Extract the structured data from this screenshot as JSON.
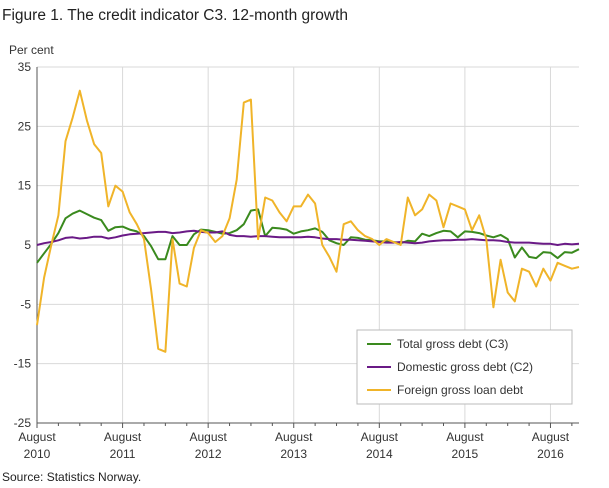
{
  "title": "Figure 1. The credit indicator C3. 12-month growth",
  "source": "Source: Statistics Norway.",
  "chart_data": {
    "type": "line",
    "title": "Figure 1. The credit indicator C3. 12-month growth",
    "ylabel": "Per cent",
    "xlabel": "",
    "ylim": [
      -25,
      35
    ],
    "yticks": [
      35,
      25,
      15,
      5,
      -5,
      -15,
      -25
    ],
    "xticks": [
      {
        "month": 0,
        "line1": "August",
        "line2": "2010"
      },
      {
        "month": 12,
        "line1": "August",
        "line2": "2011"
      },
      {
        "month": 24,
        "line1": "August",
        "line2": "2012"
      },
      {
        "month": 36,
        "line1": "August",
        "line2": "2013"
      },
      {
        "month": 48,
        "line1": "August",
        "line2": "2014"
      },
      {
        "month": 60,
        "line1": "August",
        "line2": "2015"
      },
      {
        "month": 72,
        "line1": "August",
        "line2": "2016"
      }
    ],
    "grid": true,
    "legend_position": "bottom-right",
    "series": [
      {
        "name": "Total gross debt (C3)",
        "color": "#3a8a1e",
        "values": [
          2.0,
          3.6,
          5.2,
          7.0,
          9.5,
          10.3,
          10.8,
          10.2,
          9.6,
          9.2,
          7.4,
          8.0,
          8.1,
          7.6,
          7.3,
          6.5,
          4.8,
          2.6,
          2.6,
          6.5,
          5.0,
          5.0,
          6.8,
          7.6,
          7.5,
          7.2,
          6.9,
          7.0,
          7.5,
          8.5,
          10.8,
          11.0,
          6.5,
          7.9,
          7.8,
          7.6,
          6.9,
          7.3,
          7.5,
          7.8,
          7.2,
          5.8,
          5.3,
          5.0,
          6.3,
          6.2,
          5.9,
          5.8,
          5.6,
          5.6,
          5.5,
          5.3,
          5.7,
          5.6,
          6.9,
          6.5,
          7.0,
          7.4,
          7.3,
          6.3,
          7.3,
          7.2,
          7.0,
          6.6,
          6.3,
          6.7,
          6.0,
          2.9,
          4.6,
          3.0,
          2.8,
          3.8,
          3.7,
          2.8,
          3.8,
          3.7,
          4.3
        ]
      },
      {
        "name": "Domestic gross debt (C2)",
        "color": "#6a1a86",
        "values": [
          5.0,
          5.3,
          5.5,
          5.8,
          6.2,
          6.3,
          6.1,
          6.2,
          6.4,
          6.4,
          6.1,
          6.3,
          6.6,
          6.8,
          6.9,
          7.0,
          7.1,
          7.2,
          7.2,
          7.0,
          7.1,
          7.3,
          7.4,
          7.2,
          7.1,
          7.1,
          7.3,
          6.7,
          6.5,
          6.5,
          6.4,
          6.5,
          6.5,
          6.4,
          6.3,
          6.3,
          6.3,
          6.3,
          6.4,
          6.3,
          6.1,
          6.0,
          6.0,
          5.9,
          5.9,
          5.8,
          5.7,
          5.6,
          5.5,
          5.4,
          5.4,
          5.5,
          5.4,
          5.3,
          5.4,
          5.6,
          5.7,
          5.8,
          5.8,
          5.9,
          5.9,
          6.0,
          5.9,
          5.8,
          5.8,
          5.7,
          5.5,
          5.4,
          5.4,
          5.4,
          5.3,
          5.2,
          5.2,
          5.0,
          5.2,
          5.1,
          5.2
        ]
      },
      {
        "name": "Foreign gross loan debt",
        "color": "#f0b429",
        "values": [
          -8.5,
          -0.5,
          5.0,
          10.0,
          22.5,
          26.5,
          31.0,
          26.0,
          22.0,
          20.5,
          11.5,
          15.0,
          14.0,
          10.5,
          8.5,
          6.0,
          -2.5,
          -12.5,
          -13.0,
          6.0,
          -1.5,
          -2.0,
          4.5,
          7.5,
          7.0,
          5.5,
          6.5,
          9.5,
          16.0,
          29.0,
          29.5,
          6.0,
          13.0,
          12.5,
          10.5,
          9.0,
          11.5,
          11.5,
          13.5,
          12.0,
          5.0,
          3.0,
          0.5,
          8.5,
          9.0,
          7.5,
          6.5,
          6.0,
          5.0,
          6.0,
          5.5,
          5.0,
          13.0,
          10.0,
          11.0,
          13.5,
          12.5,
          8.0,
          12.0,
          11.5,
          11.0,
          7.5,
          10.0,
          6.0,
          -5.5,
          2.5,
          -3.0,
          -4.5,
          1.0,
          0.5,
          -2.0,
          1.0,
          -1.0,
          2.0,
          1.5,
          1.0,
          1.3
        ]
      }
    ]
  }
}
